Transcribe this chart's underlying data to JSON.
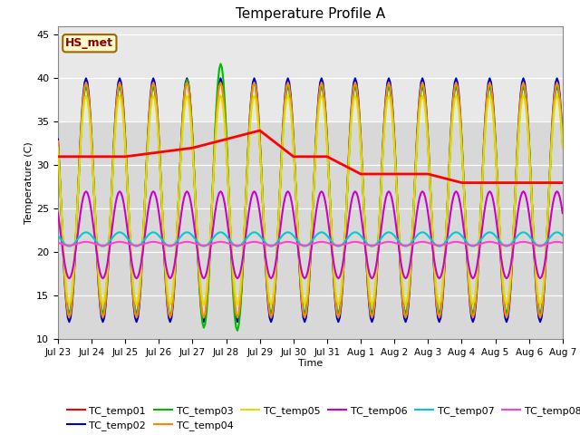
{
  "title": "Temperature Profile A",
  "xlabel": "Time",
  "ylabel": "Temperature (C)",
  "ylim": [
    10,
    46
  ],
  "xlim": [
    0,
    360
  ],
  "annotation_label": "HS_met",
  "annotation_color": "#8B0000",
  "annotation_bg": "#FFFACD",
  "annotation_border": "#996600",
  "plot_bg": "#d8d8d8",
  "plot_bg_upper": "#e8e8e8",
  "series_colors": {
    "TC_temp01": "#ff0000",
    "TC_temp02": "#0000cc",
    "TC_temp03": "#00bb00",
    "TC_temp04": "#ff8800",
    "TC_temp05": "#dddd00",
    "TC_temp06": "#cc00cc",
    "TC_temp07": "#00cccc",
    "TC_temp08": "#ff44cc"
  },
  "tick_labels": [
    "Jul 23",
    "Jul 24",
    "Jul 25",
    "Jul 26",
    "Jul 27",
    "Jul 28",
    "Jul 29",
    "Jul 30",
    "Jul 31",
    "Aug 1",
    "Aug 2",
    "Aug 3",
    "Aug 4",
    "Aug 5",
    "Aug 6",
    "Aug 7"
  ],
  "tick_positions": [
    0,
    24,
    48,
    72,
    96,
    120,
    144,
    168,
    192,
    216,
    240,
    264,
    288,
    312,
    336,
    360
  ],
  "yticks": [
    10,
    15,
    20,
    25,
    30,
    35,
    40,
    45
  ]
}
